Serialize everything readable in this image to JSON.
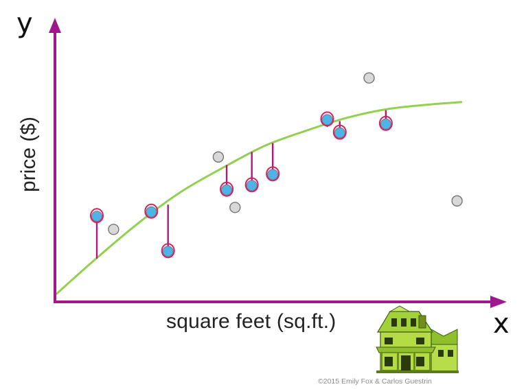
{
  "figure": {
    "y_letter": "y",
    "x_letter": "x",
    "ylabel": "price ($)",
    "xlabel": "square feet (sq.ft.)",
    "credit": "©2015 Emily Fox & Carlos Guestrin",
    "house_icon": "house-icon"
  },
  "colors": {
    "axis": "#a0198c",
    "curve": "#92d050",
    "residual": "#b5157a",
    "highlight_point": "#4fb3e8",
    "highlight_ring": "#d6205e",
    "plain_point": "#d8d8d8",
    "house": "#a3d13a"
  },
  "chart_data": {
    "type": "scatter",
    "xlim": [
      0,
      100
    ],
    "ylim": [
      0,
      100
    ],
    "grid": false,
    "fit_curve": [
      [
        0,
        3
      ],
      [
        10,
        20
      ],
      [
        20,
        36
      ],
      [
        30,
        50
      ],
      [
        40,
        61
      ],
      [
        50,
        71
      ],
      [
        60,
        78
      ],
      [
        70,
        84
      ],
      [
        80,
        88
      ],
      [
        90,
        90
      ],
      [
        97,
        91
      ]
    ],
    "highlighted_points": [
      {
        "x": 10,
        "y": 39,
        "fit": 20
      },
      {
        "x": 23,
        "y": 41,
        "fit": 40
      },
      {
        "x": 27,
        "y": 23,
        "fit": 44
      },
      {
        "x": 41,
        "y": 51,
        "fit": 62
      },
      {
        "x": 47,
        "y": 53,
        "fit": 68
      },
      {
        "x": 52,
        "y": 58,
        "fit": 72
      },
      {
        "x": 65,
        "y": 83,
        "fit": 80
      },
      {
        "x": 68,
        "y": 77,
        "fit": 82
      },
      {
        "x": 79,
        "y": 81,
        "fit": 87
      }
    ],
    "other_points": [
      {
        "x": 14,
        "y": 33
      },
      {
        "x": 39,
        "y": 66
      },
      {
        "x": 43,
        "y": 43
      },
      {
        "x": 75,
        "y": 102
      },
      {
        "x": 96,
        "y": 46
      }
    ]
  }
}
